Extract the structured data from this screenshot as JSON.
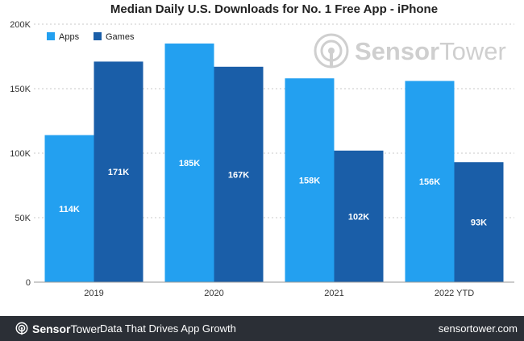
{
  "chart_data": {
    "type": "bar",
    "title": "Median Daily U.S. Downloads for No. 1 Free App - iPhone",
    "categories": [
      "2019",
      "2020",
      "2021",
      "2022 YTD"
    ],
    "series": [
      {
        "name": "Apps",
        "color": "#23a0f0",
        "values": [
          114,
          185,
          158,
          156
        ],
        "labels": [
          "114K",
          "185K",
          "158K",
          "156K"
        ]
      },
      {
        "name": "Games",
        "color": "#1a5ea8",
        "values": [
          171,
          167,
          102,
          93
        ],
        "labels": [
          "171K",
          "167K",
          "102K",
          "93K"
        ]
      }
    ],
    "y_ticks": [
      0,
      50,
      100,
      150,
      200
    ],
    "y_tick_labels": [
      "0",
      "50K",
      "100K",
      "150K",
      "200K"
    ],
    "ylim": [
      0,
      200
    ],
    "xlabel": "",
    "ylabel": "",
    "legend": "top-left",
    "grid": true
  },
  "watermark": {
    "prefix": "Sensor",
    "suffix": "Tower"
  },
  "footer": {
    "brand_prefix": "Sensor",
    "brand_suffix": "Tower",
    "tagline": "Data That Drives App Growth",
    "site": "sensortower.com",
    "background": "#2b2f36"
  }
}
